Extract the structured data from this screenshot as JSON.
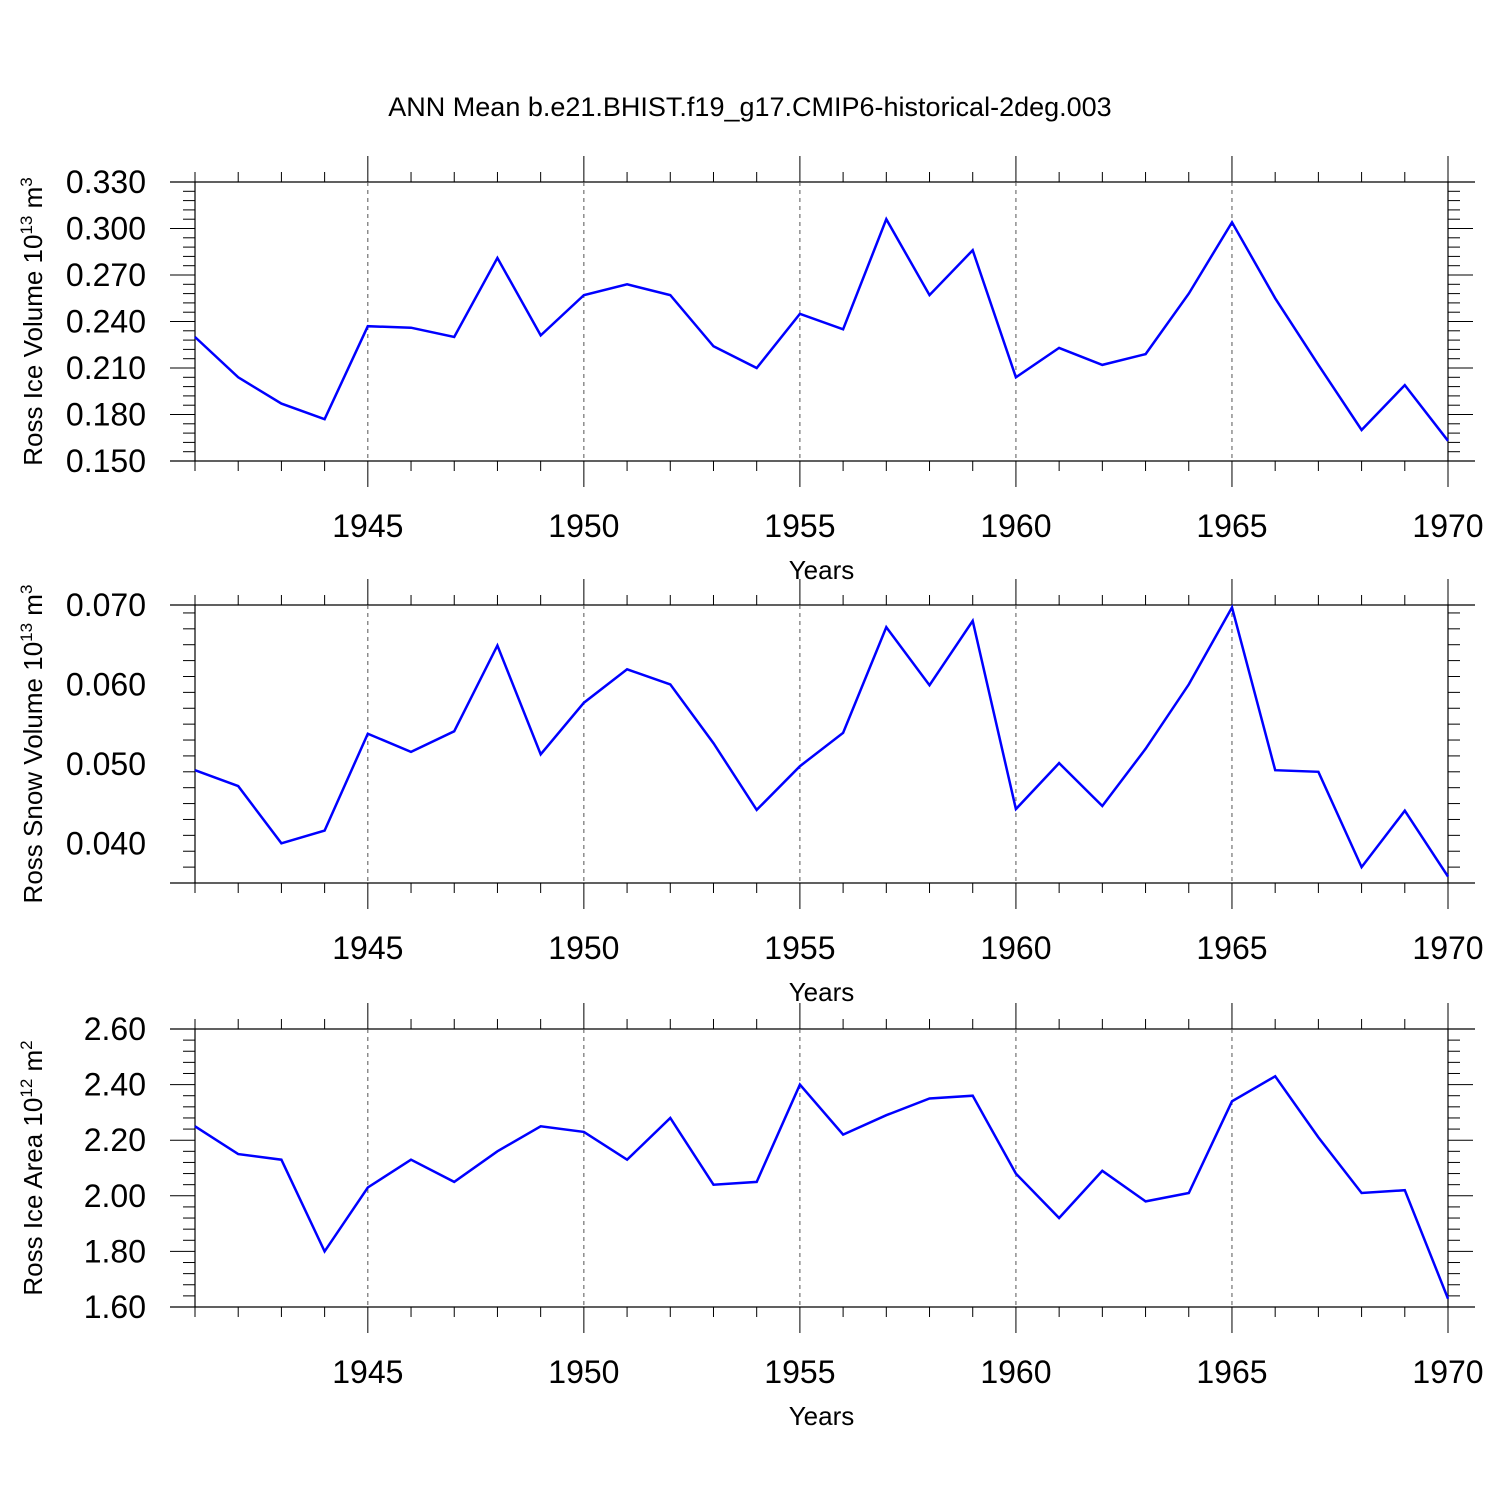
{
  "title": "ANN Mean b.e21.BHIST.f19_g17.CMIP6-historical-2deg.003",
  "chart_data": [
    {
      "type": "line",
      "xlabel": "Years",
      "ylabel": {
        "text": "Ross Ice Volume 10",
        "exp": "13",
        "unit": "m",
        "unit_exp": "3"
      },
      "xlim": [
        1941,
        1970
      ],
      "ylim": [
        0.15,
        0.33
      ],
      "x_ticks": [
        "1945",
        "1950",
        "1955",
        "1960",
        "1965",
        "1970"
      ],
      "y_ticks": [
        "0.150",
        "0.180",
        "0.210",
        "0.240",
        "0.270",
        "0.300",
        "0.330"
      ],
      "line_color": "#0000ff",
      "x": [
        1941,
        1942,
        1943,
        1944,
        1945,
        1946,
        1947,
        1948,
        1949,
        1950,
        1951,
        1952,
        1953,
        1954,
        1955,
        1956,
        1957,
        1958,
        1959,
        1960,
        1961,
        1962,
        1963,
        1964,
        1965,
        1966,
        1967,
        1968,
        1969,
        1970
      ],
      "y": [
        0.23,
        0.204,
        0.187,
        0.177,
        0.237,
        0.236,
        0.23,
        0.281,
        0.231,
        0.257,
        0.264,
        0.257,
        0.224,
        0.21,
        0.245,
        0.235,
        0.306,
        0.257,
        0.286,
        0.204,
        0.223,
        0.212,
        0.219,
        0.258,
        0.304,
        0.255,
        0.212,
        0.17,
        0.199,
        0.163
      ]
    },
    {
      "type": "line",
      "xlabel": "Years",
      "ylabel": {
        "text": "Ross Snow Volume 10",
        "exp": "13",
        "unit": "m",
        "unit_exp": "3"
      },
      "xlim": [
        1941,
        1970
      ],
      "ylim": [
        0.035,
        0.07
      ],
      "x_ticks": [
        "1945",
        "1950",
        "1955",
        "1960",
        "1965",
        "1970"
      ],
      "y_ticks": [
        "0.040",
        "0.050",
        "0.060",
        "0.070"
      ],
      "line_color": "#0000ff",
      "x": [
        1941,
        1942,
        1943,
        1944,
        1945,
        1946,
        1947,
        1948,
        1949,
        1950,
        1951,
        1952,
        1953,
        1954,
        1955,
        1956,
        1957,
        1958,
        1959,
        1960,
        1961,
        1962,
        1963,
        1964,
        1965,
        1966,
        1967,
        1968,
        1969,
        1970
      ],
      "y": [
        0.0492,
        0.0472,
        0.04,
        0.0416,
        0.0538,
        0.0515,
        0.0541,
        0.0649,
        0.0512,
        0.0577,
        0.0619,
        0.06,
        0.0526,
        0.0442,
        0.0497,
        0.0539,
        0.0672,
        0.0599,
        0.068,
        0.0443,
        0.0501,
        0.0447,
        0.0519,
        0.06,
        0.0697,
        0.0492,
        0.049,
        0.037,
        0.0441,
        0.0358
      ]
    },
    {
      "type": "line",
      "xlabel": "Years",
      "ylabel": {
        "text": "Ross Ice Area 10",
        "exp": "12",
        "unit": "m",
        "unit_exp": "2"
      },
      "xlim": [
        1941,
        1970
      ],
      "ylim": [
        1.6,
        2.6
      ],
      "x_ticks": [
        "1945",
        "1950",
        "1955",
        "1960",
        "1965",
        "1970"
      ],
      "y_ticks": [
        "1.60",
        "1.80",
        "2.00",
        "2.20",
        "2.40",
        "2.60"
      ],
      "line_color": "#0000ff",
      "x": [
        1941,
        1942,
        1943,
        1944,
        1945,
        1946,
        1947,
        1948,
        1949,
        1950,
        1951,
        1952,
        1953,
        1954,
        1955,
        1956,
        1957,
        1958,
        1959,
        1960,
        1961,
        1962,
        1963,
        1964,
        1965,
        1966,
        1967,
        1968,
        1969,
        1970
      ],
      "y": [
        2.25,
        2.15,
        2.13,
        1.8,
        2.03,
        2.13,
        2.05,
        2.16,
        2.25,
        2.23,
        2.13,
        2.28,
        2.04,
        2.05,
        2.4,
        2.22,
        2.29,
        2.35,
        2.36,
        2.08,
        1.92,
        2.09,
        1.98,
        2.01,
        2.34,
        2.43,
        2.21,
        2.01,
        2.02,
        1.63
      ]
    }
  ]
}
